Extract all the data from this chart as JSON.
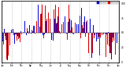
{
  "ylim": [
    -50,
    55
  ],
  "bar_width": 0.4,
  "background_color": "#ffffff",
  "grid_color": "#aaaaaa",
  "blue_color": "#0000dd",
  "red_color": "#dd0000",
  "legend_blue": "Dew Point",
  "legend_red": "Humidity",
  "n_days": 365,
  "seed": 42,
  "num_gridlines": 13,
  "yticks": [
    -50,
    -25,
    0,
    25,
    50
  ],
  "ytick_labels": [
    "0",
    "25",
    "50",
    "75",
    "100"
  ],
  "month_labels": [
    "Jan",
    "Feb",
    "Mar",
    "Apr",
    "May",
    "Jun",
    "Jul",
    "Aug",
    "Sep",
    "Oct",
    "Nov",
    "Dec",
    "Jan"
  ]
}
